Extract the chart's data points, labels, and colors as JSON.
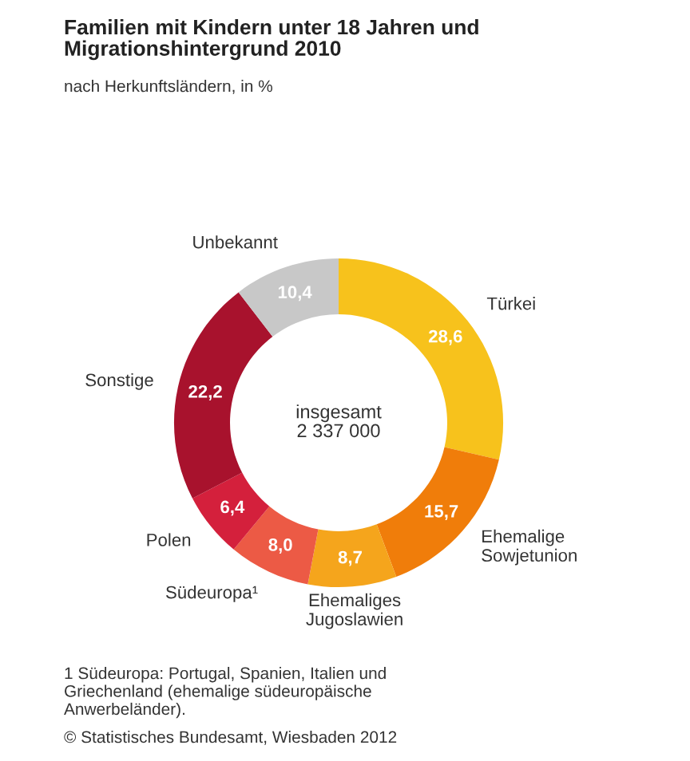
{
  "chart_data": {
    "type": "donut",
    "title": "Familien mit Kindern unter 18 Jahren und\nMigrationshintergrund 2010",
    "subtitle": "nach Herkunftsländern, in %",
    "categories": [
      "Türkei",
      "Ehemalige\nSowjetunion",
      "Ehemaliges\nJugoslawien",
      "Südeuropa¹",
      "Polen",
      "Sonstige",
      "Unbekannt"
    ],
    "values": [
      28.6,
      15.7,
      8.7,
      8.0,
      6.4,
      22.2,
      10.4
    ],
    "value_labels": [
      "28,6",
      "15,7",
      "8,7",
      "8,0",
      "6,4",
      "22,2",
      "10,4"
    ],
    "colors": [
      "#f7c21c",
      "#f07d0a",
      "#f5a51c",
      "#ec5a45",
      "#d4203c",
      "#a8122d",
      "#c8c8c8"
    ],
    "annotations": [
      "insgesamt\n2 337 000",
      "1 Südeuropa: Portugal, Spanien, Italien und\nGriechenland (ehemalige südeuropäische\nAnwerbeländer).",
      "© Statistisches Bundesamt, Wiesbaden 2012"
    ]
  }
}
